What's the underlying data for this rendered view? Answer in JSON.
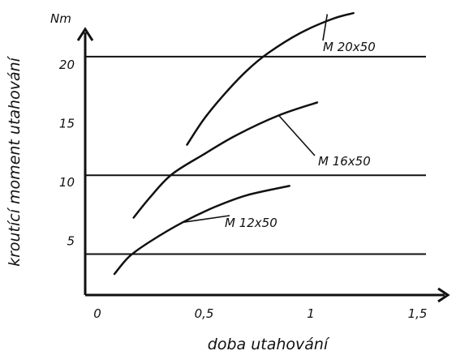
{
  "chart_data": {
    "type": "line",
    "xlabel": "doba utahování",
    "ylabel": "kroutící moment utahování",
    "yunit": "Nm",
    "xlim": [
      0,
      1.65
    ],
    "ylim": [
      0,
      24.5
    ],
    "x_ticks": [
      {
        "value": 0,
        "label": "0"
      },
      {
        "value": 0.5,
        "label": "0,5"
      },
      {
        "value": 1,
        "label": "1"
      },
      {
        "value": 1.5,
        "label": "1,5"
      }
    ],
    "y_ticks": [
      {
        "value": 5,
        "label": "5"
      },
      {
        "value": 10,
        "label": "10"
      },
      {
        "value": 15,
        "label": "15"
      },
      {
        "value": 20,
        "label": "20"
      }
    ],
    "grid": false,
    "legend": "none",
    "series": [
      {
        "name": "M 12x50",
        "x": [
          0.08,
          0.15,
          0.25,
          0.4,
          0.55,
          0.7,
          0.9
        ],
        "y": [
          2.2,
          3.7,
          5.0,
          6.6,
          7.9,
          8.9,
          9.7
        ]
      },
      {
        "name": "M 16x50",
        "x": [
          0.17,
          0.25,
          0.35,
          0.5,
          0.65,
          0.85,
          1.03
        ],
        "y": [
          7.0,
          8.8,
          10.7,
          12.4,
          14.0,
          15.7,
          16.8
        ]
      },
      {
        "name": "M 20x50",
        "x": [
          0.42,
          0.5,
          0.6,
          0.7,
          0.8,
          0.95,
          1.1,
          1.2
        ],
        "y": [
          13.2,
          15.4,
          17.6,
          19.5,
          21.0,
          22.7,
          23.9,
          24.4
        ]
      }
    ],
    "reference_lines": [
      {
        "y": 20.7
      },
      {
        "y": 10.6
      },
      {
        "y": 3.9
      }
    ]
  }
}
